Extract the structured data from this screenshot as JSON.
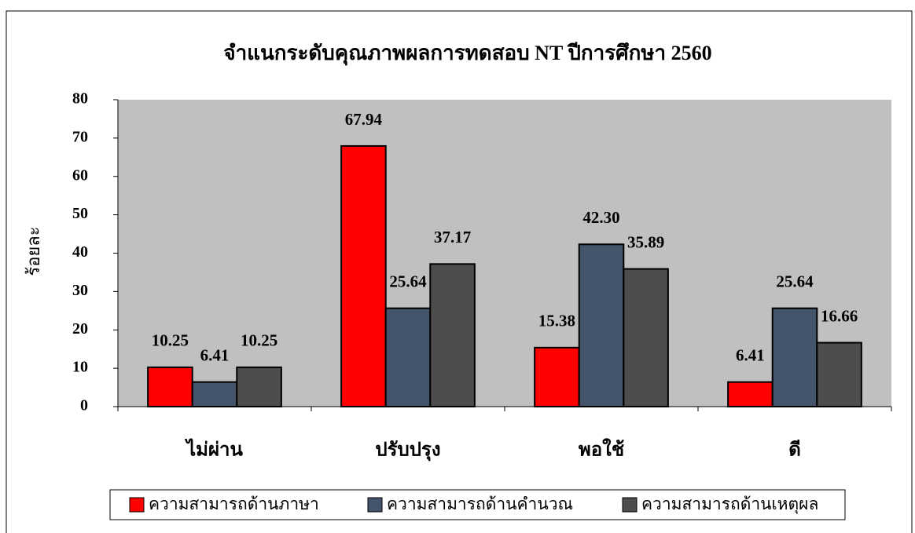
{
  "chart_data": {
    "type": "bar",
    "title": "จำแนกระดับคุณภาพผลการทดสอบ NT ปีการศึกษา 2560",
    "y_label": "ร้อยละ",
    "categories": [
      "ไม่ผ่าน",
      "ปรับปรุง",
      "พอใช้",
      "ดี"
    ],
    "series": [
      {
        "name": "ความสามารถด้านภาษา",
        "color": "#ff0000",
        "values": [
          10.25,
          67.94,
          15.38,
          6.41
        ],
        "value_labels": [
          "10.25",
          "67.94",
          "15.38",
          "6.41"
        ]
      },
      {
        "name": "ความสามารถด้านคำนวณ",
        "color": "#44546a",
        "values": [
          6.41,
          25.64,
          42.3,
          25.64
        ],
        "value_labels": [
          "6.41",
          "25.64",
          "42.30",
          "25.64"
        ]
      },
      {
        "name": "ความสามารถด้านเหตุผล",
        "color": "#4d4d4d",
        "values": [
          10.25,
          37.17,
          35.89,
          16.66
        ],
        "value_labels": [
          "10.25",
          "37.17",
          "35.89",
          "16.66"
        ]
      }
    ],
    "ylim": [
      0,
      80
    ],
    "yticks": [
      0,
      10,
      20,
      30,
      40,
      50,
      60,
      70,
      80
    ],
    "plot_background": "#c0c0c0",
    "grid": false,
    "legend": "bottom"
  }
}
